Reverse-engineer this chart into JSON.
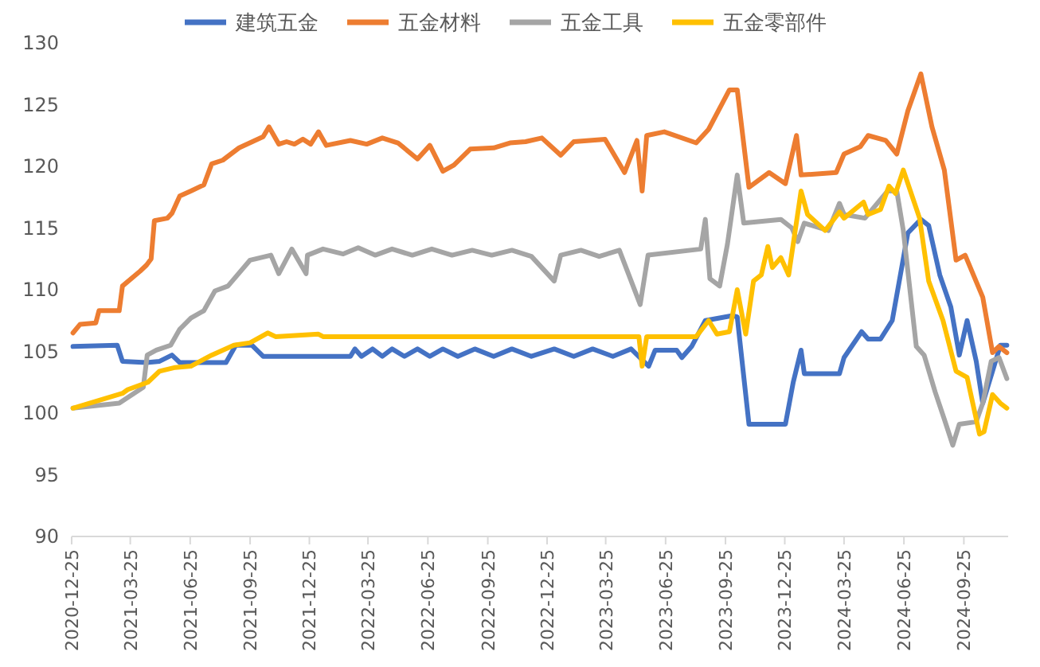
{
  "chart_data": {
    "type": "line",
    "legend": "top",
    "grid": false,
    "ylim": [
      90,
      130
    ],
    "yticks": [
      90,
      95,
      100,
      105,
      110,
      115,
      120,
      125,
      130
    ],
    "xlim": [
      "2020-12-25",
      "2024-12-02"
    ],
    "xticks": [
      "2020-12-25",
      "2021-03-25",
      "2021-06-25",
      "2021-09-25",
      "2021-12-25",
      "2022-03-25",
      "2022-06-25",
      "2022-09-25",
      "2022-12-25",
      "2023-03-25",
      "2023-06-25",
      "2023-09-25",
      "2023-12-25",
      "2024-03-25",
      "2024-06-25",
      "2024-09-25"
    ],
    "series": [
      {
        "name": "建筑五金",
        "color": "#4472c4",
        "x": [
          "2020-12-27",
          "2021-03-05",
          "2021-03-13",
          "2021-04-19",
          "2021-05-09",
          "2021-05-28",
          "2021-06-09",
          "2021-08-19",
          "2021-09-03",
          "2021-09-28",
          "2021-10-15",
          "2022-02-26",
          "2022-03-05",
          "2022-03-15",
          "2022-04-01",
          "2022-04-16",
          "2022-05-01",
          "2022-05-20",
          "2022-06-09",
          "2022-06-28",
          "2022-07-18",
          "2022-08-10",
          "2022-09-05",
          "2022-10-04",
          "2022-11-01",
          "2022-12-01",
          "2023-01-05",
          "2023-02-04",
          "2023-03-05",
          "2023-04-05",
          "2023-05-03",
          "2023-05-30",
          "2023-06-09",
          "2023-07-12",
          "2023-07-20",
          "2023-08-04",
          "2023-08-25",
          "2023-10-06",
          "2023-10-13",
          "2023-10-31",
          "2023-12-26",
          "2024-01-07",
          "2024-01-19",
          "2024-01-24",
          "2024-03-18",
          "2024-03-25",
          "2024-04-21",
          "2024-05-01",
          "2024-05-20",
          "2024-06-07",
          "2024-07-01",
          "2024-07-21",
          "2024-08-02",
          "2024-08-19",
          "2024-09-05",
          "2024-09-18",
          "2024-09-30",
          "2024-10-14",
          "2024-10-24",
          "2024-11-08",
          "2024-11-20",
          "2024-11-30"
        ],
        "values": [
          105.4,
          105.5,
          104.2,
          104.1,
          104.2,
          104.7,
          104.1,
          104.1,
          105.5,
          105.5,
          104.6,
          104.6,
          105.2,
          104.6,
          105.2,
          104.6,
          105.2,
          104.6,
          105.2,
          104.6,
          105.2,
          104.6,
          105.2,
          104.6,
          105.2,
          104.6,
          105.2,
          104.6,
          105.2,
          104.6,
          105.2,
          103.8,
          105.1,
          105.1,
          104.5,
          105.4,
          107.5,
          107.9,
          107.8,
          99.1,
          99.1,
          102.5,
          105.1,
          103.2,
          103.2,
          104.5,
          106.6,
          106,
          106,
          107.5,
          114.6,
          115.7,
          115.2,
          111.2,
          108.6,
          104.7,
          107.5,
          104.2,
          100.8,
          103.4,
          105.5,
          105.5
        ]
      },
      {
        "name": "五金材料",
        "color": "#ed7d31",
        "x": [
          "2020-12-27",
          "2021-01-07",
          "2021-01-31",
          "2021-02-05",
          "2021-03-08",
          "2021-03-13",
          "2021-04-09",
          "2021-04-19",
          "2021-04-26",
          "2021-05-01",
          "2021-05-21",
          "2021-05-28",
          "2021-06-09",
          "2021-06-26",
          "2021-07-16",
          "2021-07-28",
          "2021-08-14",
          "2021-09-08",
          "2021-10-15",
          "2021-10-24",
          "2021-11-08",
          "2021-11-20",
          "2021-12-02",
          "2021-12-15",
          "2021-12-27",
          "2022-01-08",
          "2022-01-20",
          "2022-02-26",
          "2022-03-23",
          "2022-04-16",
          "2022-05-10",
          "2022-06-09",
          "2022-06-28",
          "2022-07-18",
          "2022-08-04",
          "2022-08-29",
          "2022-10-04",
          "2022-10-29",
          "2022-11-22",
          "2022-12-17",
          "2023-01-15",
          "2023-02-04",
          "2023-03-24",
          "2023-04-23",
          "2023-05-12",
          "2023-05-20",
          "2023-05-27",
          "2023-06-23",
          "2023-08-11",
          "2023-08-30",
          "2023-10-01",
          "2023-10-13",
          "2023-10-31",
          "2023-12-01",
          "2023-12-26",
          "2024-01-12",
          "2024-01-19",
          "2024-03-13",
          "2024-03-25",
          "2024-04-19",
          "2024-05-01",
          "2024-05-28",
          "2024-06-14",
          "2024-07-01",
          "2024-07-21",
          "2024-08-07",
          "2024-08-26",
          "2024-09-13",
          "2024-09-27",
          "2024-10-24",
          "2024-11-08",
          "2024-11-18",
          "2024-11-30"
        ],
        "values": [
          106.5,
          107.2,
          107.3,
          108.3,
          108.3,
          110.3,
          111.5,
          112,
          112.5,
          115.6,
          115.8,
          116.2,
          117.6,
          118,
          118.5,
          120.2,
          120.5,
          121.5,
          122.4,
          123.2,
          121.8,
          122,
          121.8,
          122.2,
          121.8,
          122.8,
          121.7,
          122.1,
          121.8,
          122.3,
          121.9,
          120.6,
          121.7,
          119.6,
          120.1,
          121.4,
          121.5,
          121.9,
          122,
          122.3,
          120.9,
          122,
          122.2,
          119.5,
          122.1,
          118,
          122.5,
          122.8,
          121.9,
          123,
          126.2,
          126.2,
          118.3,
          119.5,
          118.6,
          122.5,
          119.3,
          119.5,
          121,
          121.6,
          122.5,
          122.1,
          121,
          124.5,
          127.5,
          123.2,
          119.7,
          112.4,
          112.8,
          109.4,
          104.9,
          105.4,
          104.9
        ]
      },
      {
        "name": "五金工具",
        "color": "#a5a5a5",
        "x": [
          "2020-12-27",
          "2021-03-08",
          "2021-04-14",
          "2021-04-20",
          "2021-05-04",
          "2021-05-26",
          "2021-06-09",
          "2021-06-26",
          "2021-07-16",
          "2021-08-02",
          "2021-08-22",
          "2021-09-25",
          "2021-10-27",
          "2021-11-08",
          "2021-11-28",
          "2021-12-20",
          "2021-12-22",
          "2022-01-15",
          "2022-02-15",
          "2022-03-10",
          "2022-04-05",
          "2022-05-01",
          "2022-06-01",
          "2022-07-01",
          "2022-08-01",
          "2022-09-01",
          "2022-10-01",
          "2022-11-01",
          "2022-12-01",
          "2023-01-05",
          "2023-01-15",
          "2023-02-15",
          "2023-03-15",
          "2023-04-15",
          "2023-05-17",
          "2023-05-29",
          "2023-08-18",
          "2023-08-25",
          "2023-09-01",
          "2023-09-16",
          "2023-09-28",
          "2023-10-13",
          "2023-10-23",
          "2023-12-19",
          "2024-01-05",
          "2024-01-14",
          "2024-01-24",
          "2024-03-01",
          "2024-03-18",
          "2024-03-25",
          "2024-04-26",
          "2024-05-31",
          "2024-06-14",
          "2024-06-24",
          "2024-07-14",
          "2024-07-26",
          "2024-08-12",
          "2024-08-26",
          "2024-09-08",
          "2024-09-18",
          "2024-10-14",
          "2024-10-24",
          "2024-11-06",
          "2024-11-18",
          "2024-11-30"
        ],
        "values": [
          100.4,
          100.8,
          102.1,
          104.7,
          105.1,
          105.5,
          106.8,
          107.7,
          108.3,
          109.9,
          110.3,
          112.4,
          112.8,
          111.3,
          113.3,
          111.3,
          112.8,
          113.3,
          112.9,
          113.4,
          112.8,
          113.3,
          112.8,
          113.3,
          112.8,
          113.2,
          112.8,
          113.2,
          112.7,
          110.7,
          112.8,
          113.2,
          112.7,
          113.2,
          108.8,
          112.8,
          113.3,
          115.7,
          110.9,
          110.3,
          113.7,
          119.3,
          115.4,
          115.7,
          115,
          113.9,
          115.4,
          114.8,
          117,
          116.1,
          115.8,
          118,
          118,
          114.8,
          105.4,
          104.7,
          101.7,
          99.5,
          97.4,
          99.1,
          99.3,
          100.8,
          104.2,
          104.5,
          102.8
        ]
      },
      {
        "name": "五金零部件",
        "color": "#ffc000",
        "x": [
          "2020-12-27",
          "2021-03-13",
          "2021-03-21",
          "2021-04-21",
          "2021-05-09",
          "2021-06-02",
          "2021-06-26",
          "2021-07-28",
          "2021-08-31",
          "2021-09-25",
          "2021-10-22",
          "2021-11-03",
          "2022-01-08",
          "2022-01-15",
          "2023-05-15",
          "2023-05-20",
          "2023-05-27",
          "2023-08-11",
          "2023-08-30",
          "2023-09-12",
          "2023-10-01",
          "2023-10-13",
          "2023-10-26",
          "2023-11-07",
          "2023-11-19",
          "2023-11-29",
          "2023-12-06",
          "2023-12-19",
          "2023-12-31",
          "2024-01-19",
          "2024-01-29",
          "2024-02-25",
          "2024-03-18",
          "2024-03-25",
          "2024-04-24",
          "2024-05-01",
          "2024-05-20",
          "2024-06-02",
          "2024-06-12",
          "2024-06-24",
          "2024-07-19",
          "2024-08-02",
          "2024-08-24",
          "2024-09-13",
          "2024-09-30",
          "2024-10-19",
          "2024-10-26",
          "2024-11-08",
          "2024-11-20",
          "2024-11-30"
        ],
        "values": [
          100.4,
          101.6,
          101.9,
          102.5,
          103.4,
          103.7,
          103.8,
          104.7,
          105.5,
          105.7,
          106.5,
          106.2,
          106.4,
          106.2,
          106.2,
          103.8,
          106.2,
          106.2,
          107.5,
          106.4,
          106.6,
          110,
          106.4,
          110.7,
          111.2,
          113.5,
          111.8,
          112.6,
          111.2,
          118,
          116.1,
          114.8,
          116.3,
          115.8,
          117.1,
          116.1,
          116.5,
          118.4,
          117.8,
          119.7,
          115.8,
          110.7,
          107.5,
          103.4,
          102.9,
          98.3,
          98.5,
          101.5,
          100.8,
          100.4
        ]
      }
    ]
  }
}
